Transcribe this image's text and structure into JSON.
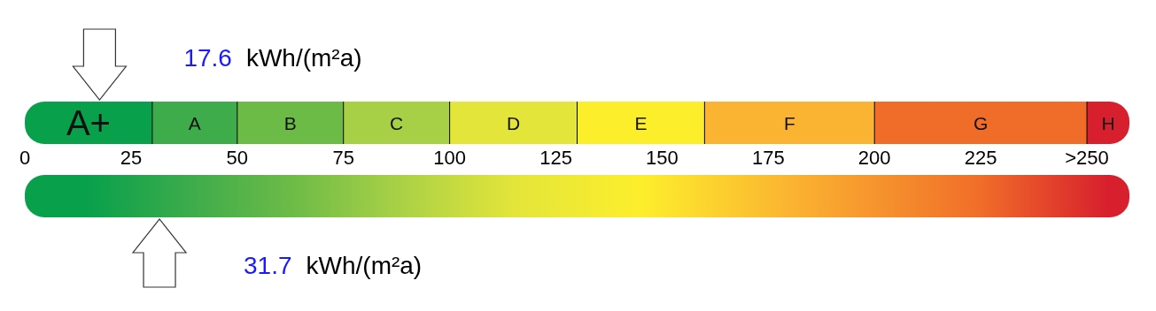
{
  "chart_data": {
    "type": "bar",
    "orientation": "horizontal",
    "stacked": true,
    "categories": [
      null
    ],
    "xlim": [
      0,
      260
    ],
    "xticks": [
      0,
      25,
      50,
      75,
      100,
      125,
      150,
      175,
      200,
      225,
      {
        "value": 250,
        "label": ">250"
      }
    ],
    "series": [
      {
        "name": "A+",
        "color": "#09a04c",
        "values": [
          30
        ]
      },
      {
        "name": "A",
        "color": "#3fac4b",
        "values": [
          20
        ]
      },
      {
        "name": "B",
        "color": "#6cbb47",
        "values": [
          25
        ]
      },
      {
        "name": "C",
        "color": "#a8d046",
        "values": [
          25
        ]
      },
      {
        "name": "D",
        "color": "#e3e53a",
        "values": [
          30
        ]
      },
      {
        "name": "E",
        "color": "#fdee2c",
        "values": [
          30
        ]
      },
      {
        "name": "F",
        "color": "#fbb431",
        "values": [
          40
        ]
      },
      {
        "name": "G",
        "color": "#f06d29",
        "values": [
          50
        ]
      },
      {
        "name": "H",
        "color": "#d71f2d",
        "values": [
          10
        ]
      }
    ],
    "annotations": [
      "17.6 kWh/(m²a)",
      "31.7 kWh/(m²a)"
    ]
  }
}
